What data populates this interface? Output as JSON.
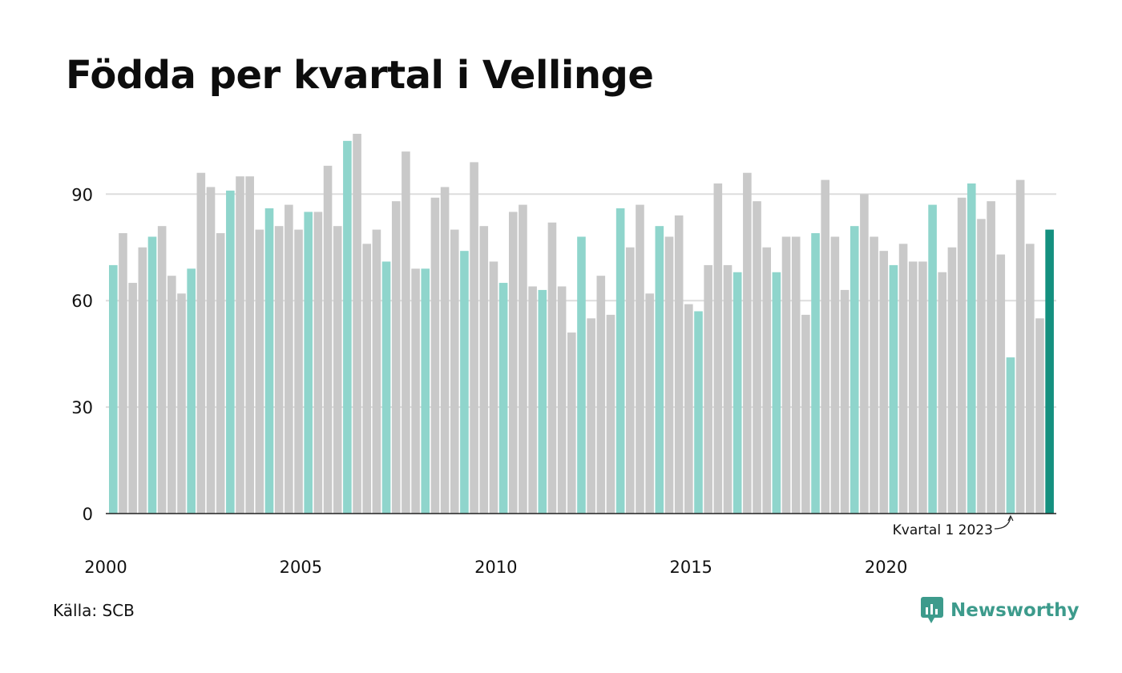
{
  "title": "Födda per kvartal i Vellinge",
  "source": "Källa: SCB",
  "brand": {
    "name": "Newsworthy",
    "icon": "newsworthy-logo-icon",
    "color": "#3d9b8c"
  },
  "colors": {
    "q1": "#8fd5cc",
    "other": "#c9c9c9",
    "latest": "#14907f",
    "grid": "#dddddd",
    "axis": "#222222"
  },
  "chart_data": {
    "type": "bar",
    "title": "Födda per kvartal i Vellinge",
    "xlabel": "",
    "ylabel": "",
    "ylim": [
      0,
      110
    ],
    "yticks": [
      0,
      30,
      60,
      90
    ],
    "xtick_labels": [
      "2000",
      "2005",
      "2010",
      "2015",
      "2020"
    ],
    "grid": true,
    "annotation": {
      "text": "Kvartal 1 2023",
      "target": "2023 Q1"
    },
    "series": [
      {
        "year": 2000,
        "values": [
          70,
          79,
          65,
          75
        ]
      },
      {
        "year": 2001,
        "values": [
          78,
          81,
          67,
          62
        ]
      },
      {
        "year": 2002,
        "values": [
          69,
          96,
          92,
          79
        ]
      },
      {
        "year": 2003,
        "values": [
          91,
          95,
          95,
          80
        ]
      },
      {
        "year": 2004,
        "values": [
          86,
          81,
          87,
          80
        ]
      },
      {
        "year": 2005,
        "values": [
          85,
          85,
          98,
          81
        ]
      },
      {
        "year": 2006,
        "values": [
          105,
          107,
          76,
          80
        ]
      },
      {
        "year": 2007,
        "values": [
          71,
          88,
          102,
          69
        ]
      },
      {
        "year": 2008,
        "values": [
          69,
          89,
          92,
          80
        ]
      },
      {
        "year": 2009,
        "values": [
          74,
          99,
          81,
          71
        ]
      },
      {
        "year": 2010,
        "values": [
          65,
          85,
          87,
          64
        ]
      },
      {
        "year": 2011,
        "values": [
          63,
          82,
          64,
          51
        ]
      },
      {
        "year": 2012,
        "values": [
          78,
          55,
          67,
          56
        ]
      },
      {
        "year": 2013,
        "values": [
          86,
          75,
          87,
          62
        ]
      },
      {
        "year": 2014,
        "values": [
          81,
          78,
          84,
          59
        ]
      },
      {
        "year": 2015,
        "values": [
          57,
          70,
          93,
          70
        ]
      },
      {
        "year": 2016,
        "values": [
          68,
          96,
          88,
          75
        ]
      },
      {
        "year": 2017,
        "values": [
          68,
          78,
          78,
          56
        ]
      },
      {
        "year": 2018,
        "values": [
          79,
          94,
          78,
          63
        ]
      },
      {
        "year": 2019,
        "values": [
          81,
          90,
          78,
          74
        ]
      },
      {
        "year": 2020,
        "values": [
          70,
          76,
          71,
          71
        ]
      },
      {
        "year": 2021,
        "values": [
          87,
          68,
          75,
          89
        ]
      },
      {
        "year": 2022,
        "values": [
          93,
          83,
          88,
          73
        ]
      },
      {
        "year": 2023,
        "values": [
          44,
          94,
          76,
          55
        ]
      },
      {
        "year": 2024,
        "values": [
          80
        ]
      }
    ]
  }
}
